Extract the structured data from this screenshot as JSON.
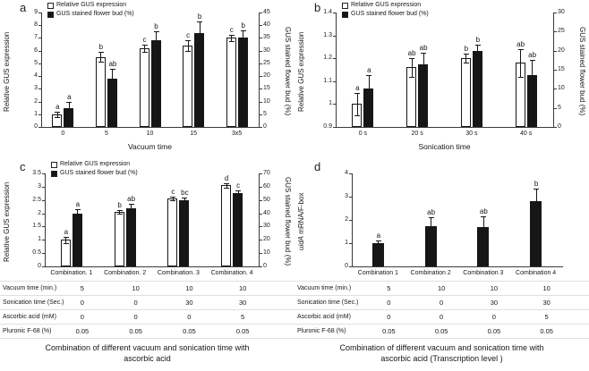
{
  "figure": {
    "colors": {
      "open_bar": "#ffffff",
      "filled_bar": "#161616",
      "axis": "#3a3a3a"
    }
  },
  "chart_data": [
    {
      "type": "bar",
      "panel": "a",
      "legend": [
        "Relative GUS expression",
        "GUS stained flower bud (%)"
      ],
      "x_label": "Vacuum time",
      "categories": [
        "0",
        "5",
        "10",
        "15",
        "3x5"
      ],
      "left_axis": {
        "label": "Relative GUS expression",
        "min": 0,
        "max": 9,
        "ticks": [
          "0",
          "1",
          "2",
          "3",
          "4",
          "5",
          "6",
          "7",
          "8",
          "9"
        ]
      },
      "right_axis": {
        "label": "GUS stained flower bud (%)",
        "min": 0,
        "max": 45,
        "ticks": [
          "0",
          "5",
          "10",
          "15",
          "20",
          "25",
          "30",
          "35",
          "40",
          "45"
        ]
      },
      "series": [
        {
          "name": "Relative GUS expression",
          "axis": "left",
          "fill": "open",
          "values": [
            1.0,
            5.5,
            6.2,
            6.4,
            7.0
          ],
          "errors": [
            0.2,
            0.4,
            0.3,
            0.4,
            0.25
          ],
          "letters": [
            "a",
            "b",
            "c",
            "c",
            "c"
          ]
        },
        {
          "name": "GUS stained flower bud (%)",
          "axis": "right",
          "fill": "filled",
          "values": [
            7.5,
            19,
            34,
            37,
            35
          ],
          "errors": [
            2.5,
            4,
            3.5,
            4.5,
            3
          ],
          "letters": [
            "a",
            "ab",
            "b",
            "b",
            "b"
          ]
        }
      ]
    },
    {
      "type": "bar",
      "panel": "b",
      "legend": [
        "Relative GUS expression",
        "GUS stained flower bud (%)"
      ],
      "x_label": "Sonication time",
      "categories": [
        "0 s",
        "20 s",
        "30 s",
        "40 s"
      ],
      "left_axis": {
        "label": "Relative GUS expression",
        "min": 0.9,
        "max": 1.4,
        "ticks": [
          "0.9",
          "1",
          "1.1",
          "1.2",
          "1.3",
          "1.4"
        ]
      },
      "right_axis": {
        "label": "GUS stained flower bud (%)",
        "min": 0,
        "max": 30,
        "ticks": [
          "0",
          "5",
          "10",
          "15",
          "20",
          "25",
          "30"
        ]
      },
      "series": [
        {
          "name": "Relative GUS expression",
          "axis": "left",
          "fill": "open",
          "values": [
            1.0,
            1.16,
            1.2,
            1.18
          ],
          "errors": [
            0.05,
            0.04,
            0.02,
            0.06
          ],
          "letters": [
            "a",
            "ab",
            "b",
            "ab"
          ]
        },
        {
          "name": "GUS stained flower bud (%)",
          "axis": "right",
          "fill": "filled",
          "values": [
            10,
            16.5,
            20,
            13.5
          ],
          "errors": [
            3.5,
            3,
            1.5,
            4
          ],
          "letters": [
            "a",
            "ab",
            "b",
            "ab"
          ]
        }
      ]
    },
    {
      "type": "bar",
      "panel": "c",
      "legend": [
        "Relative GUS expression",
        "GUS stained flower bud (%)"
      ],
      "x_label": "",
      "categories": [
        "Combination. 1",
        "Combination. 2",
        "Combination. 3",
        "Combination. 4"
      ],
      "left_axis": {
        "label": "Relative GUS expression",
        "min": 0,
        "max": 3.5,
        "ticks": [
          "0",
          "0.5",
          "1",
          "1.5",
          "2",
          "2.5",
          "3",
          "3.5"
        ]
      },
      "right_axis": {
        "label": "GUS stained flower bud (%)",
        "min": 0,
        "max": 70,
        "ticks": [
          "0",
          "10",
          "20",
          "30",
          "40",
          "50",
          "60",
          "70"
        ]
      },
      "series": [
        {
          "name": "Relative GUS expression",
          "axis": "left",
          "fill": "open",
          "values": [
            1.0,
            2.05,
            2.55,
            3.05
          ],
          "errors": [
            0.12,
            0.08,
            0.06,
            0.08
          ],
          "letters": [
            "a",
            "b",
            "c",
            "d"
          ]
        },
        {
          "name": "GUS stained flower bud (%)",
          "axis": "right",
          "fill": "filled",
          "values": [
            40,
            44,
            50,
            55
          ],
          "errors": [
            3,
            3,
            2,
            2
          ],
          "letters": [
            "a",
            "ab",
            "bc",
            "c"
          ]
        }
      ],
      "table": {
        "rows": [
          {
            "label": "Vacuum time (min.)",
            "values": [
              "5",
              "10",
              "10",
              "10"
            ]
          },
          {
            "label": "Sonication time (Sec.)",
            "values": [
              "0",
              "0",
              "30",
              "30"
            ]
          },
          {
            "label": "Ascorbic acid (mM)",
            "values": [
              "0",
              "0",
              "0",
              "5"
            ]
          },
          {
            "label": "Pluronic F-68 (%)",
            "values": [
              "0.05",
              "0.05",
              "0.05",
              "0.05"
            ]
          }
        ]
      },
      "caption": "Combination of different vacuum and sonication time with ascorbic acid"
    },
    {
      "type": "bar",
      "panel": "d",
      "x_label": "",
      "categories": [
        "Combination 1",
        "Combination 2",
        "Combination 3",
        "Combination 4"
      ],
      "left_axis": {
        "label": "uidA mRNA/F-box",
        "italic_prefix": "uidA",
        "min": 0,
        "max": 4,
        "ticks": [
          "0",
          "1",
          "2",
          "3",
          "4"
        ]
      },
      "series": [
        {
          "name": "uidA mRNA/F-box",
          "axis": "left",
          "fill": "filled",
          "values": [
            1.0,
            1.75,
            1.7,
            2.8
          ],
          "errors": [
            0.12,
            0.35,
            0.45,
            0.55
          ],
          "letters": [
            "a",
            "ab",
            "ab",
            "b"
          ]
        }
      ],
      "table": {
        "rows": [
          {
            "label": "Vacuum time (min.)",
            "values": [
              "5",
              "10",
              "10",
              "10"
            ]
          },
          {
            "label": "Sonication time (Sec.)",
            "values": [
              "0",
              "0",
              "30",
              "30"
            ]
          },
          {
            "label": "Ascorbic acid (mM)",
            "values": [
              "0",
              "0",
              "0",
              "5"
            ]
          },
          {
            "label": "Pluronic F-68 (%)",
            "values": [
              "0.05",
              "0.05",
              "0.05",
              "0.05"
            ]
          }
        ]
      },
      "caption": "Combination of different vacuum and sonication time with ascorbic acid (Transcription level )"
    }
  ]
}
